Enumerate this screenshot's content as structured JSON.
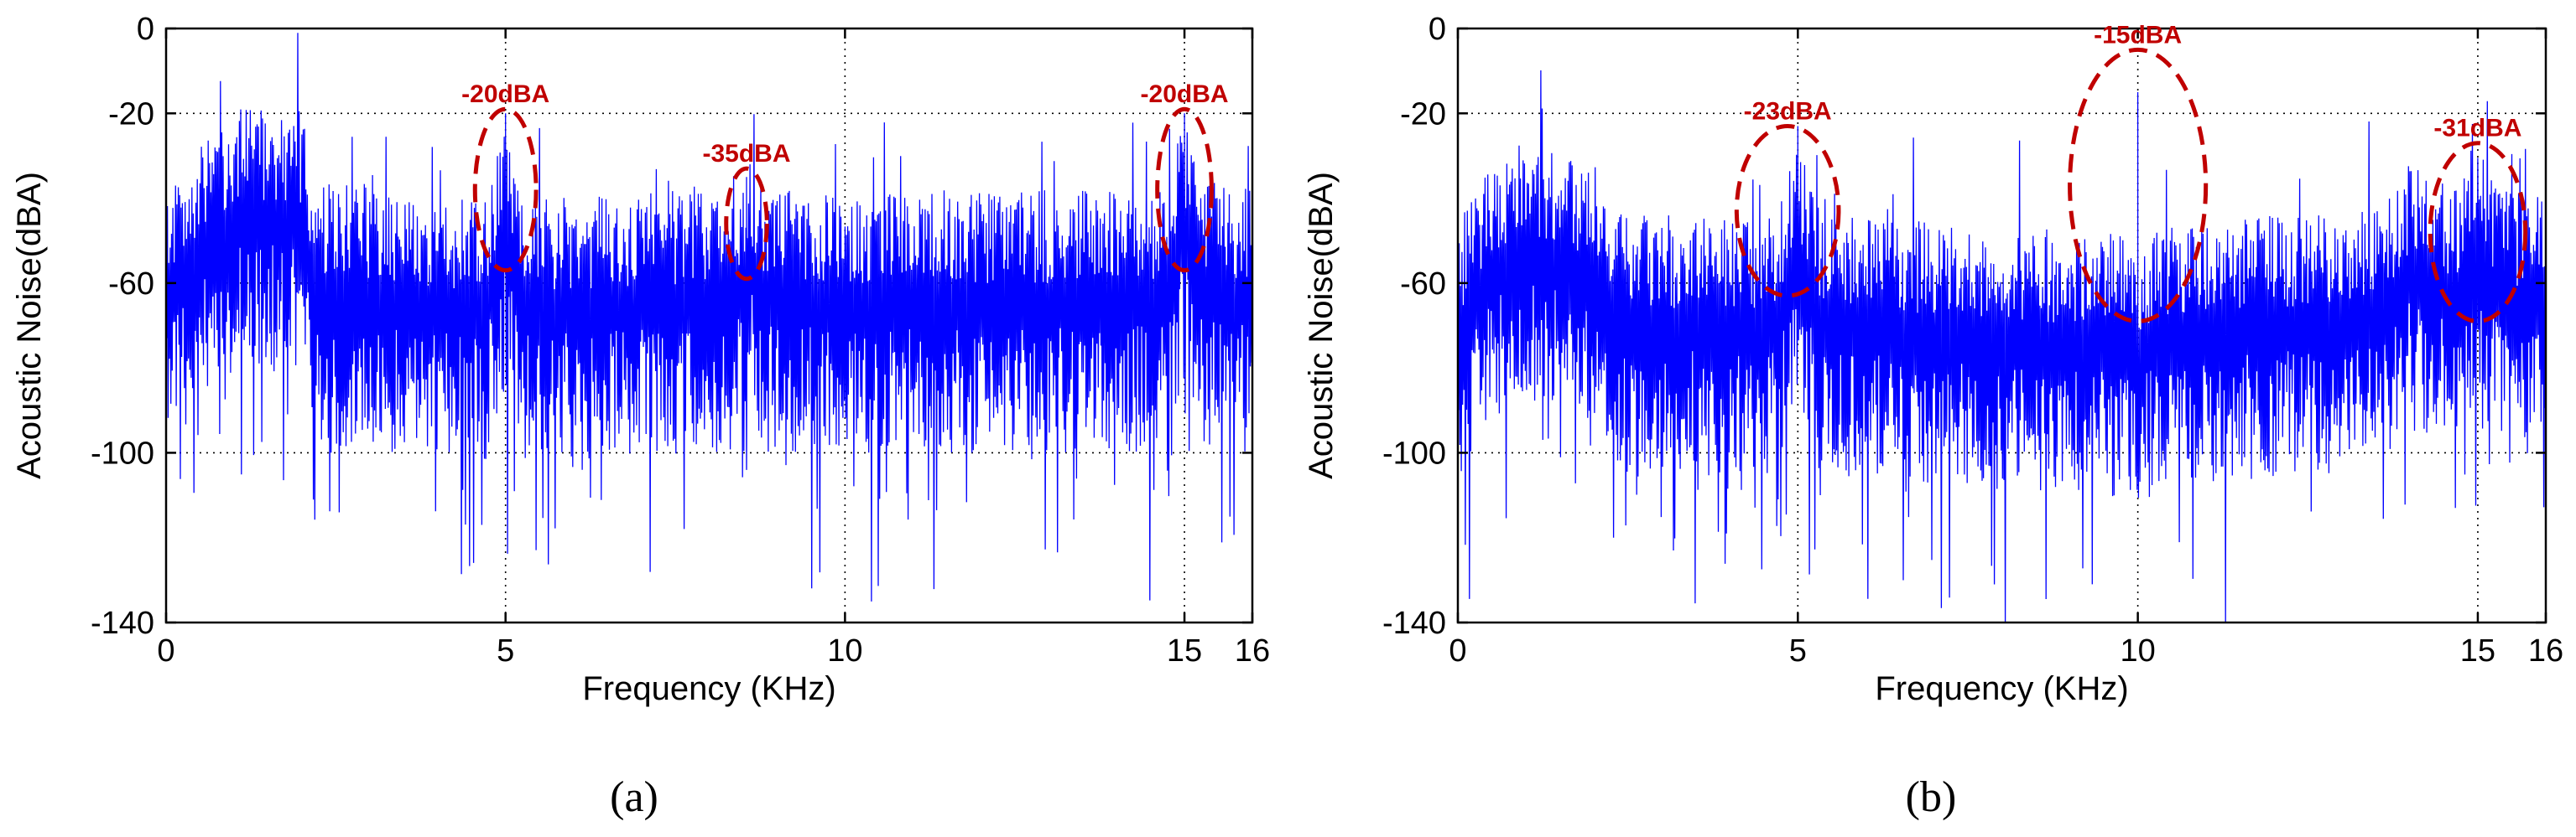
{
  "chart_data": [
    {
      "type": "line",
      "panel_label": "(a)",
      "xlabel": "Frequency (KHz)",
      "ylabel": "Acoustic Noise(dBA)",
      "xlim": [
        0,
        16
      ],
      "ylim": [
        -140,
        0
      ],
      "xticks": [
        0,
        5,
        10,
        15,
        16
      ],
      "xtick_labels": [
        "0",
        "5",
        "10",
        "15",
        "16"
      ],
      "yticks": [
        0,
        -20,
        -60,
        -100,
        -140
      ],
      "ytick_labels": [
        "0",
        "-20",
        "-60",
        "-100",
        "-140"
      ],
      "grid": true,
      "series": [
        {
          "color": "#0000ff",
          "description": "dense noise spectrum",
          "baseline_profile": [
            {
              "x": 0,
              "y": -65
            },
            {
              "x": 0.5,
              "y": -52
            },
            {
              "x": 1.0,
              "y": -45
            },
            {
              "x": 2.0,
              "y": -45
            },
            {
              "x": 2.2,
              "y": -62
            },
            {
              "x": 4.7,
              "y": -66
            },
            {
              "x": 5.0,
              "y": -48
            },
            {
              "x": 5.3,
              "y": -66
            },
            {
              "x": 8.4,
              "y": -64
            },
            {
              "x": 8.6,
              "y": -54
            },
            {
              "x": 8.8,
              "y": -64
            },
            {
              "x": 14.7,
              "y": -64
            },
            {
              "x": 15.0,
              "y": -46
            },
            {
              "x": 15.3,
              "y": -62
            },
            {
              "x": 16,
              "y": -64
            }
          ]
        }
      ],
      "annotations": [
        {
          "text": "-20dBA",
          "x": 5.0,
          "y": -20,
          "color": "#c00000",
          "ellipse": {
            "cx": 5.0,
            "cy": -38,
            "rx": 0.45,
            "ry": 19
          }
        },
        {
          "text": "-35dBA",
          "x": 8.55,
          "y": -35,
          "color": "#c00000",
          "ellipse": {
            "cx": 8.55,
            "cy": -46,
            "rx": 0.3,
            "ry": 13
          }
        },
        {
          "text": "-20dBA",
          "x": 15.0,
          "y": -20,
          "color": "#c00000",
          "ellipse": {
            "cx": 15.0,
            "cy": -38,
            "rx": 0.4,
            "ry": 19
          }
        }
      ]
    },
    {
      "type": "line",
      "panel_label": "(b)",
      "xlabel": "Frequency (KHz)",
      "ylabel": "Acoustic Noise(dBA)",
      "xlim": [
        0,
        16
      ],
      "ylim": [
        -140,
        0
      ],
      "xticks": [
        0,
        5,
        10,
        15,
        16
      ],
      "xtick_labels": [
        "0",
        "5",
        "10",
        "15",
        "16"
      ],
      "yticks": [
        0,
        -20,
        -60,
        -100,
        -140
      ],
      "ytick_labels": [
        "0",
        "-20",
        "-60",
        "-100",
        "-140"
      ],
      "grid": true,
      "series": [
        {
          "color": "#0000ff",
          "description": "dense noise spectrum",
          "baseline_profile": [
            {
              "x": 0,
              "y": -72
            },
            {
              "x": 0.5,
              "y": -58
            },
            {
              "x": 1.0,
              "y": -52
            },
            {
              "x": 2.0,
              "y": -58
            },
            {
              "x": 2.5,
              "y": -70
            },
            {
              "x": 4.7,
              "y": -70
            },
            {
              "x": 5.0,
              "y": -52
            },
            {
              "x": 5.3,
              "y": -70
            },
            {
              "x": 9.5,
              "y": -74
            },
            {
              "x": 10.0,
              "y": -76
            },
            {
              "x": 10.5,
              "y": -72
            },
            {
              "x": 13.5,
              "y": -68
            },
            {
              "x": 14.0,
              "y": -58
            },
            {
              "x": 14.7,
              "y": -64
            },
            {
              "x": 15.0,
              "y": -50
            },
            {
              "x": 15.3,
              "y": -64
            },
            {
              "x": 16,
              "y": -66
            }
          ]
        }
      ],
      "annotations": [
        {
          "text": "-23dBA",
          "x": 5.0,
          "y": -23,
          "color": "#c00000",
          "ellipse": {
            "cx": 4.85,
            "cy": -43,
            "rx": 0.75,
            "ry": 20
          }
        },
        {
          "text": "-15dBA",
          "x": 10.0,
          "y": -15,
          "color": "#c00000",
          "ellipse": {
            "cx": 10.0,
            "cy": -37,
            "rx": 1.0,
            "ry": 32
          }
        },
        {
          "text": "-31dBA",
          "x": 15.0,
          "y": -31,
          "color": "#c00000",
          "ellipse": {
            "cx": 15.0,
            "cy": -48,
            "rx": 0.7,
            "ry": 21
          }
        }
      ]
    }
  ]
}
